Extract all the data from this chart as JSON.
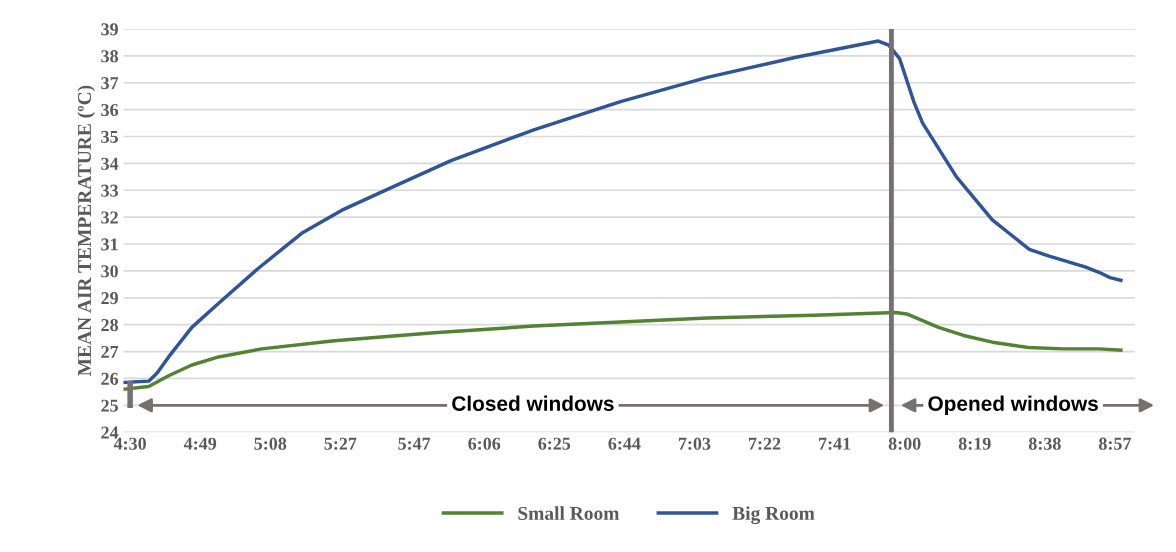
{
  "chart_data": {
    "type": "line",
    "ylabel": "MEAN AIR TEMPERATURE (ºC)",
    "xlim": [
      4.47,
      9.04
    ],
    "xticks": [
      {
        "value": 4.5,
        "label": "4:30"
      },
      {
        "value": 4.816667,
        "label": "4:49"
      },
      {
        "value": 5.133333,
        "label": "5:08"
      },
      {
        "value": 5.45,
        "label": "5:27"
      },
      {
        "value": 5.783333,
        "label": "5:47"
      },
      {
        "value": 6.1,
        "label": "6:06"
      },
      {
        "value": 6.416667,
        "label": "6:25"
      },
      {
        "value": 6.733333,
        "label": "6:44"
      },
      {
        "value": 7.05,
        "label": "7:03"
      },
      {
        "value": 7.366667,
        "label": "7:22"
      },
      {
        "value": 7.683333,
        "label": "7:41"
      },
      {
        "value": 8.0,
        "label": "8:00"
      },
      {
        "value": 8.316667,
        "label": "8:19"
      },
      {
        "value": 8.633333,
        "label": "8:38"
      },
      {
        "value": 8.95,
        "label": "8:57"
      }
    ],
    "ylim": [
      24,
      39
    ],
    "yticks": [
      24,
      25,
      26,
      27,
      28,
      29,
      30,
      31,
      32,
      33,
      34,
      35,
      36,
      37,
      38,
      39
    ],
    "grid": "y",
    "legend": "bottom",
    "line_style": "solid",
    "marker": "none",
    "series": [
      {
        "name": "Small Room",
        "color": "#548235",
        "x": [
          4.473,
          4.584,
          4.674,
          4.779,
          4.9,
          5.095,
          5.423,
          5.874,
          6.324,
          6.716,
          7.108,
          7.59,
          7.959,
          8.009,
          8.153,
          8.266,
          8.396,
          8.559,
          8.716,
          8.878,
          8.977
        ],
        "values": [
          25.6,
          25.7,
          26.1,
          26.5,
          26.8,
          27.1,
          27.4,
          27.7,
          27.95,
          28.1,
          28.25,
          28.35,
          28.45,
          28.4,
          27.9,
          27.6,
          27.35,
          27.15,
          27.1,
          27.1,
          27.05
        ]
      },
      {
        "name": "Big Room",
        "color": "#2f5597",
        "x": [
          4.473,
          4.584,
          4.622,
          4.674,
          4.779,
          4.9,
          5.08,
          5.275,
          5.455,
          5.68,
          5.95,
          6.324,
          6.716,
          7.108,
          7.509,
          7.881,
          7.928,
          7.977,
          8.041,
          8.081,
          8.234,
          8.396,
          8.563,
          8.653,
          8.815,
          8.878,
          8.928,
          8.977
        ],
        "values": [
          25.85,
          25.9,
          26.2,
          26.8,
          27.9,
          28.8,
          30.1,
          31.4,
          32.25,
          33.1,
          34.1,
          35.25,
          36.3,
          37.2,
          37.95,
          38.55,
          38.4,
          37.9,
          36.3,
          35.5,
          33.5,
          31.9,
          30.8,
          30.55,
          30.15,
          29.95,
          29.75,
          29.65
        ]
      }
    ],
    "ref_lines": [
      {
        "axis": "x",
        "value": 7.94,
        "color": "#767171"
      }
    ],
    "annotations": [
      "Closed windows",
      "Opened windows"
    ]
  }
}
